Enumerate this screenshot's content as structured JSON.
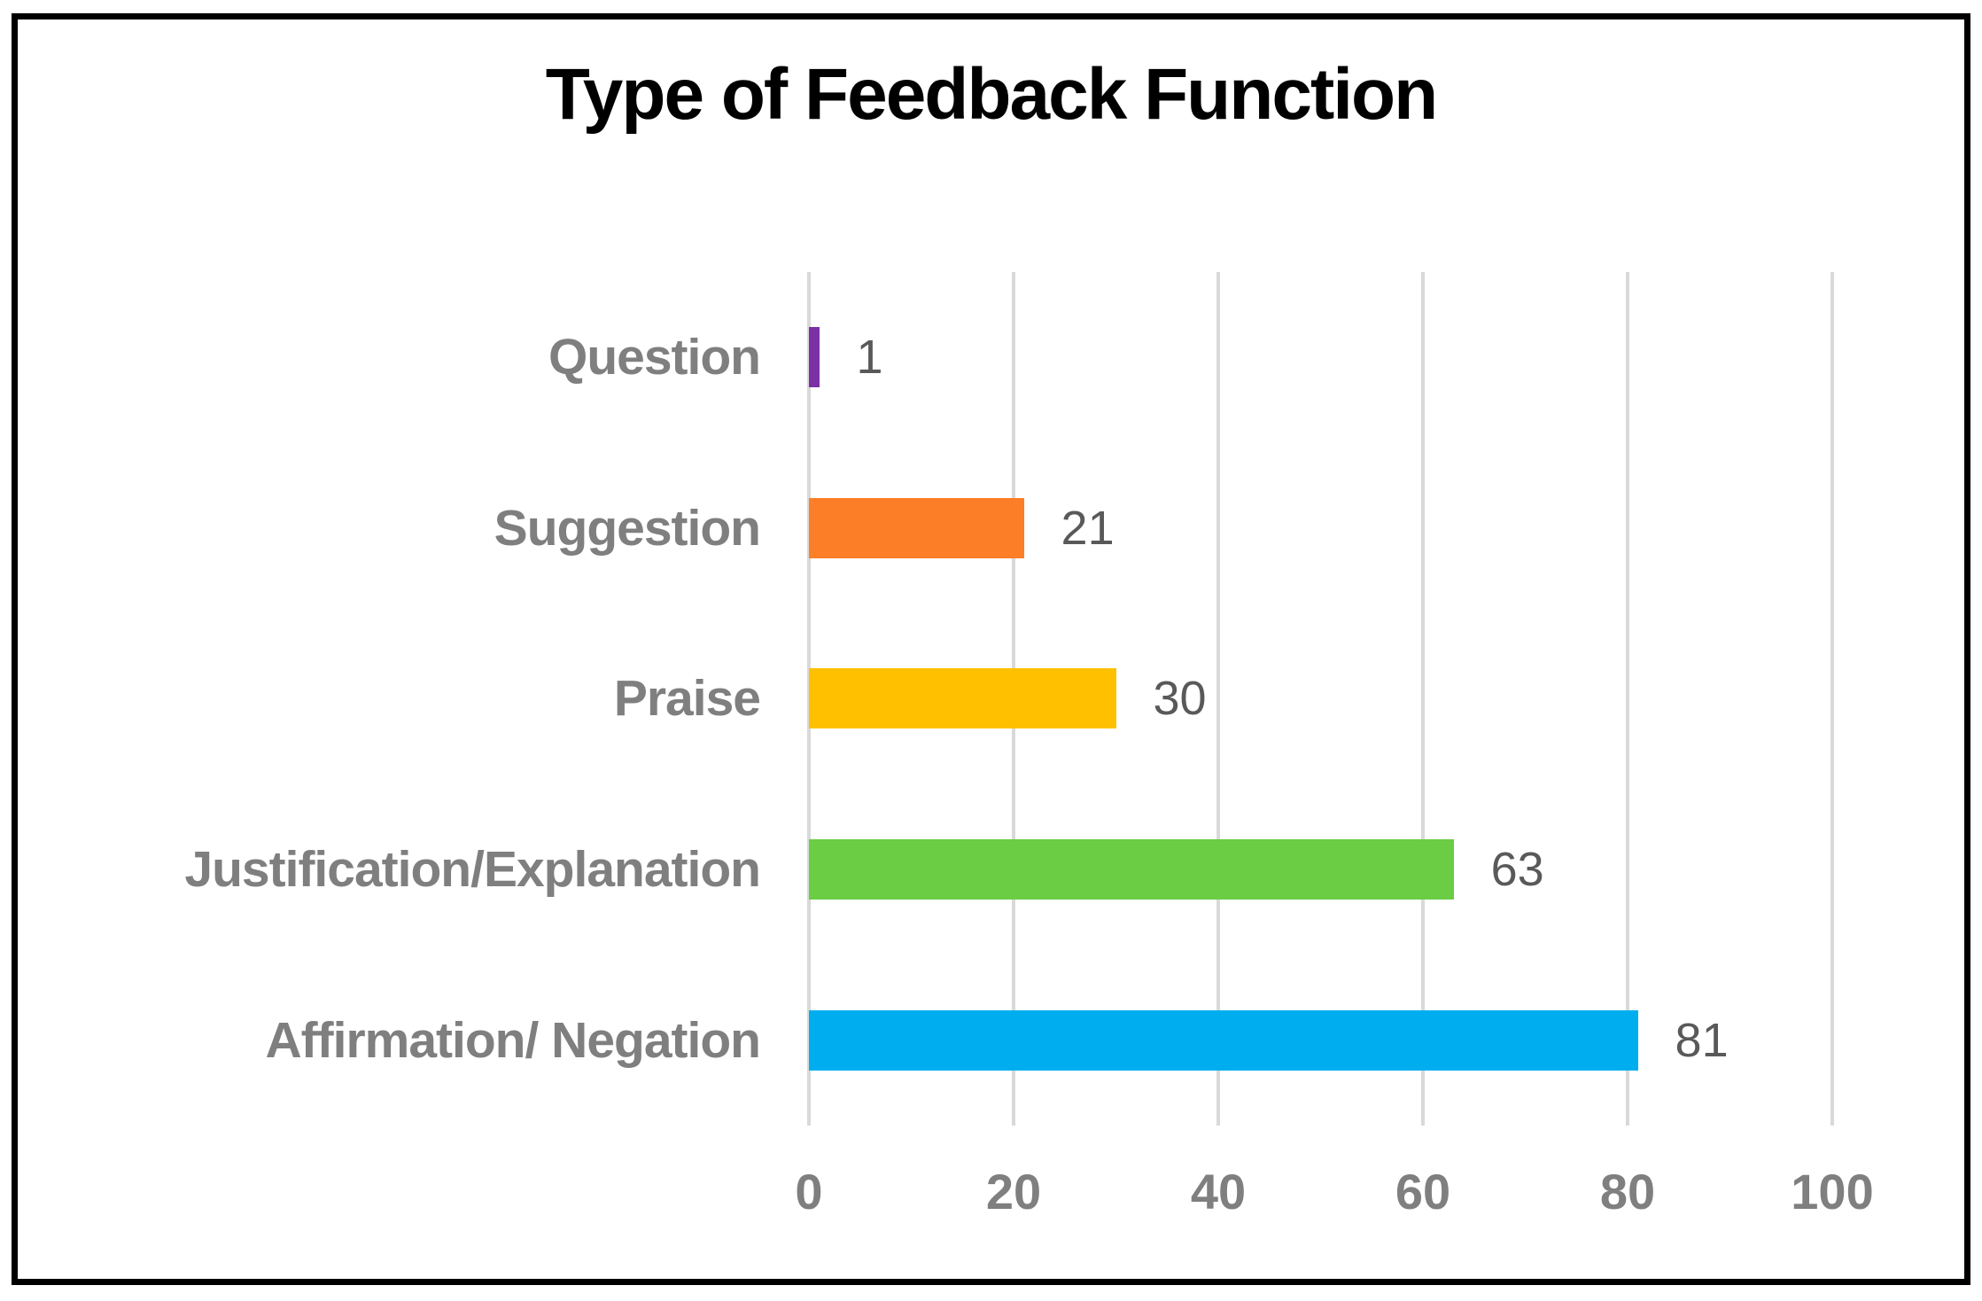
{
  "title": "Type of Feedback Function",
  "colors": {
    "background": "#FFFFFF",
    "frame_border": "#000000",
    "title_text": "#000000",
    "gridline": "#D9D9D9",
    "category_label": "#7F7F7F",
    "value_label": "#595959",
    "axis_label": "#7F7F7F"
  },
  "chart_data": {
    "type": "bar",
    "orientation": "horizontal",
    "title": "Type of Feedback Function",
    "categories": [
      "Question",
      "Suggestion",
      "Praise",
      "Justification/Explanation",
      "Affirmation/ Negation"
    ],
    "values": [
      1,
      21,
      30,
      63,
      81
    ],
    "data_labels": [
      "1",
      "21",
      "30",
      "63",
      "81"
    ],
    "bar_colors": [
      "#7B30A5",
      "#FC7E26",
      "#FFC000",
      "#6ACD43",
      "#00AEEF"
    ],
    "xlabel": "",
    "ylabel": "",
    "xlim": [
      0,
      100
    ],
    "x_ticks": [
      0,
      20,
      40,
      60,
      80,
      100
    ],
    "grid": "vertical-gridlines-on",
    "legend": "none",
    "category_order_note": "listed top-to-bottom as displayed"
  }
}
